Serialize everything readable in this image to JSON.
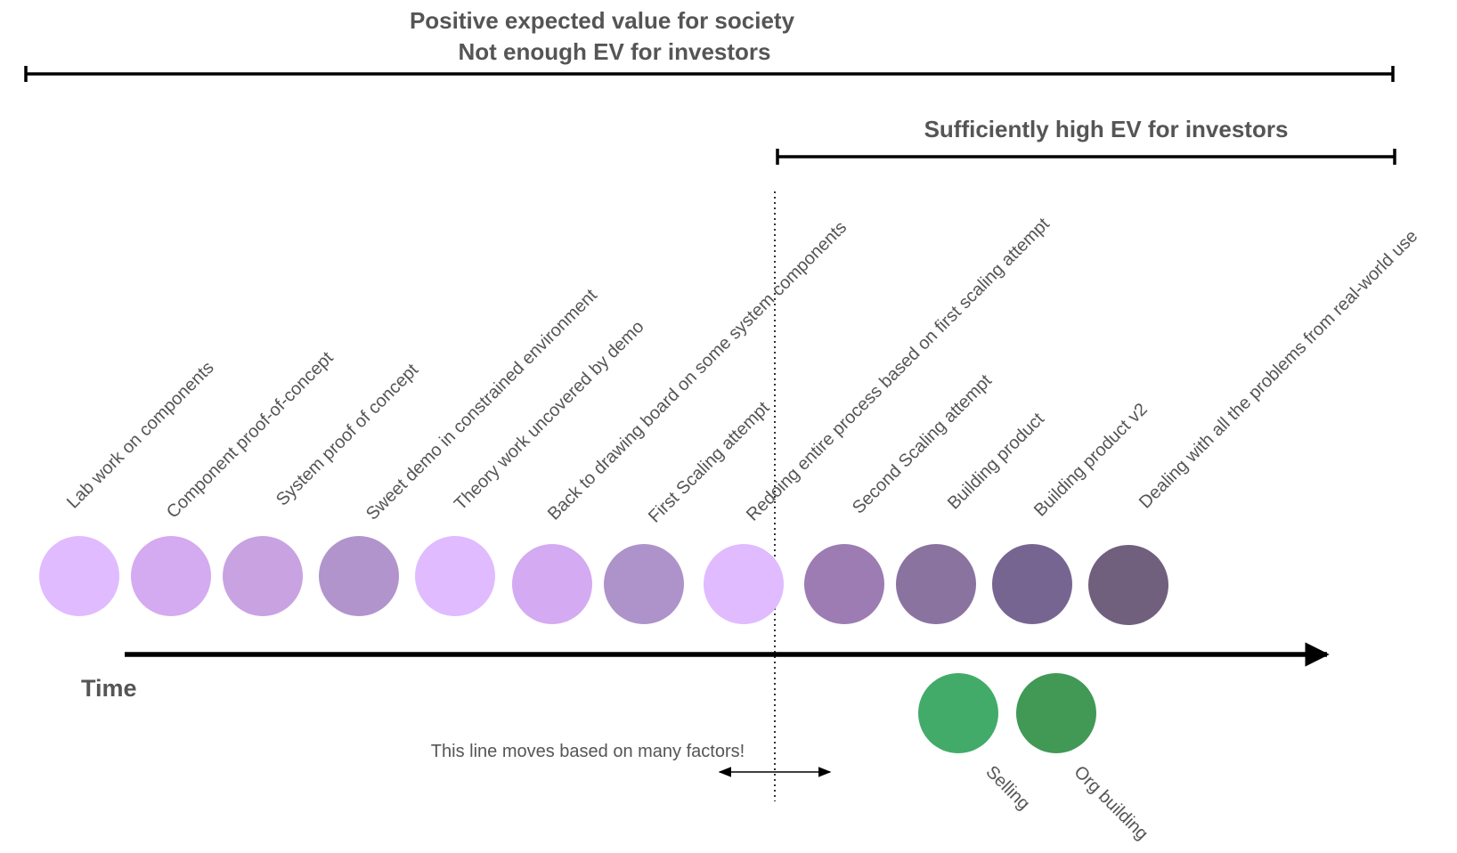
{
  "headers": {
    "society_line1": "Positive expected value for society",
    "society_line2": "Not enough EV for investors",
    "investors": "Sufficiently high EV for investors"
  },
  "time_label": "Time",
  "moving_line_note": "This line moves based on many factors!",
  "stages": [
    {
      "label": "Lab work on components",
      "color": "#e0bbff"
    },
    {
      "label": "Component proof-of-concept",
      "color": "#d4aaf0"
    },
    {
      "label": "System proof of concept",
      "color": "#c9a2e2"
    },
    {
      "label": "Sweet demo in constrained environment",
      "color": "#b194cc"
    },
    {
      "label": "Theory work uncovered by demo",
      "color": "#e0bbff"
    },
    {
      "label": "Back to drawing board on some system components",
      "color": "#d4aaf2"
    },
    {
      "label": "First Scaling attempt",
      "color": "#ad93c9"
    },
    {
      "label": "Redoing entire process based on first scaling attempt",
      "color": "#e0bbff"
    },
    {
      "label": "Second Scaling attempt",
      "color": "#9c7cb2"
    },
    {
      "label": "Building product",
      "color": "#8b73a0"
    },
    {
      "label": "Building product v2",
      "color": "#776591"
    },
    {
      "label": "Dealing with all the problems from real-world use",
      "color": "#71607d"
    }
  ],
  "side_stages": [
    {
      "label": "Selling",
      "color": "#42ab69"
    },
    {
      "label": "Org building",
      "color": "#429955"
    }
  ],
  "colors": {
    "text": "#555555",
    "lines": "#000000"
  }
}
